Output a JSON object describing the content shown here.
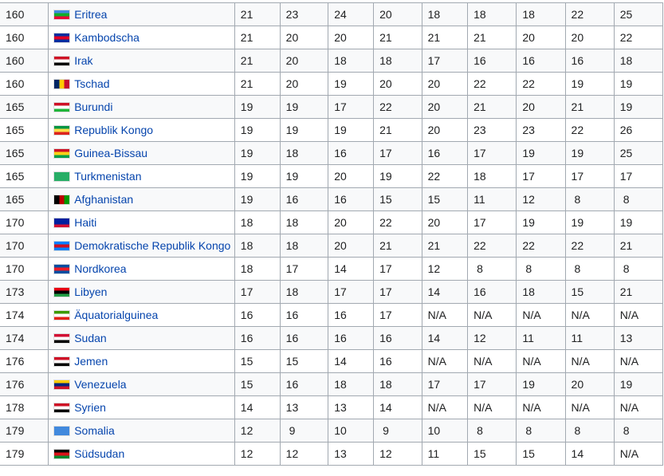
{
  "table": {
    "rows": [
      {
        "rank": "160",
        "country": "Eritrea",
        "flag": "#4189dd|#12ad2b|#ea0437",
        "values": [
          "21",
          "23",
          "24",
          "20",
          "18",
          "18",
          "18",
          "22",
          "25"
        ]
      },
      {
        "rank": "160",
        "country": "Kambodscha",
        "flag": "#032ea1|#e00025|#032ea1",
        "values": [
          "21",
          "20",
          "20",
          "21",
          "21",
          "21",
          "20",
          "20",
          "22"
        ]
      },
      {
        "rank": "160",
        "country": "Irak",
        "flag": "#ce1126|#ffffff|#000000",
        "values": [
          "21",
          "20",
          "18",
          "18",
          "17",
          "16",
          "16",
          "16",
          "18"
        ]
      },
      {
        "rank": "160",
        "country": "Tschad",
        "flag": "v:#002664|#fecb00|#c60c30",
        "values": [
          "21",
          "20",
          "19",
          "20",
          "20",
          "22",
          "22",
          "19",
          "19"
        ]
      },
      {
        "rank": "165",
        "country": "Burundi",
        "flag": "#ce1126|#ffffff|#1eb53a",
        "values": [
          "19",
          "19",
          "17",
          "22",
          "20",
          "21",
          "20",
          "21",
          "19"
        ]
      },
      {
        "rank": "165",
        "country": "Republik Kongo",
        "flag": "#009543|#fbde4a|#dc241f",
        "values": [
          "19",
          "19",
          "19",
          "21",
          "20",
          "23",
          "23",
          "22",
          "26"
        ]
      },
      {
        "rank": "165",
        "country": "Guinea-Bissau",
        "flag": "#ce1126|#fcd116|#009e49",
        "values": [
          "19",
          "18",
          "16",
          "17",
          "16",
          "17",
          "19",
          "19",
          "25"
        ]
      },
      {
        "rank": "165",
        "country": "Turkmenistan",
        "flag": "#28ae66|#28ae66|#28ae66",
        "values": [
          "19",
          "19",
          "20",
          "19",
          "22",
          "18",
          "17",
          "17",
          "17"
        ]
      },
      {
        "rank": "165",
        "country": "Afghanistan",
        "flag": "v:#000000|#be0000|#009900",
        "values": [
          "19",
          "16",
          "16",
          "15",
          "15",
          "11",
          "12",
          "8",
          "8"
        ]
      },
      {
        "rank": "170",
        "country": "Haiti",
        "flag": "#00209f|#00209f|#d21034",
        "values": [
          "18",
          "18",
          "20",
          "22",
          "20",
          "17",
          "19",
          "19",
          "19"
        ]
      },
      {
        "rank": "170",
        "country": "Demokratische Republik Kongo",
        "flag": "#007fff|#ce1021|#007fff",
        "values": [
          "18",
          "18",
          "20",
          "21",
          "21",
          "22",
          "22",
          "22",
          "21"
        ]
      },
      {
        "rank": "170",
        "country": "Nordkorea",
        "flag": "#024fa2|#ed1c27|#024fa2",
        "values": [
          "18",
          "17",
          "14",
          "17",
          "12",
          "8",
          "8",
          "8",
          "8"
        ]
      },
      {
        "rank": "173",
        "country": "Libyen",
        "flag": "#e70013|#000000|#239e46",
        "values": [
          "17",
          "18",
          "17",
          "17",
          "14",
          "16",
          "18",
          "15",
          "21"
        ]
      },
      {
        "rank": "174",
        "country": "Äquatorialguinea",
        "flag": "#3e9a00|#ffffff|#e32118",
        "values": [
          "16",
          "16",
          "16",
          "17",
          "N/A",
          "N/A",
          "N/A",
          "N/A",
          "N/A"
        ]
      },
      {
        "rank": "174",
        "country": "Sudan",
        "flag": "#d21034|#ffffff|#000000",
        "values": [
          "16",
          "16",
          "16",
          "16",
          "14",
          "12",
          "11",
          "11",
          "13"
        ]
      },
      {
        "rank": "176",
        "country": "Jemen",
        "flag": "#ce1126|#ffffff|#000000",
        "values": [
          "15",
          "15",
          "14",
          "16",
          "N/A",
          "N/A",
          "N/A",
          "N/A",
          "N/A"
        ]
      },
      {
        "rank": "176",
        "country": "Venezuela",
        "flag": "#ffcc00|#00247d|#cf142b",
        "values": [
          "15",
          "16",
          "18",
          "18",
          "17",
          "17",
          "19",
          "20",
          "19"
        ]
      },
      {
        "rank": "178",
        "country": "Syrien",
        "flag": "#ce1126|#ffffff|#000000",
        "values": [
          "14",
          "13",
          "13",
          "14",
          "N/A",
          "N/A",
          "N/A",
          "N/A",
          "N/A"
        ]
      },
      {
        "rank": "179",
        "country": "Somalia",
        "flag": "#4189dd|#4189dd|#4189dd",
        "values": [
          "12",
          "9",
          "10",
          "9",
          "10",
          "8",
          "8",
          "8",
          "8"
        ]
      },
      {
        "rank": "179",
        "country": "Südsudan",
        "flag": "#000000|#da121a|#078930",
        "values": [
          "12",
          "12",
          "13",
          "12",
          "11",
          "15",
          "15",
          "14",
          "N/A"
        ]
      }
    ]
  }
}
